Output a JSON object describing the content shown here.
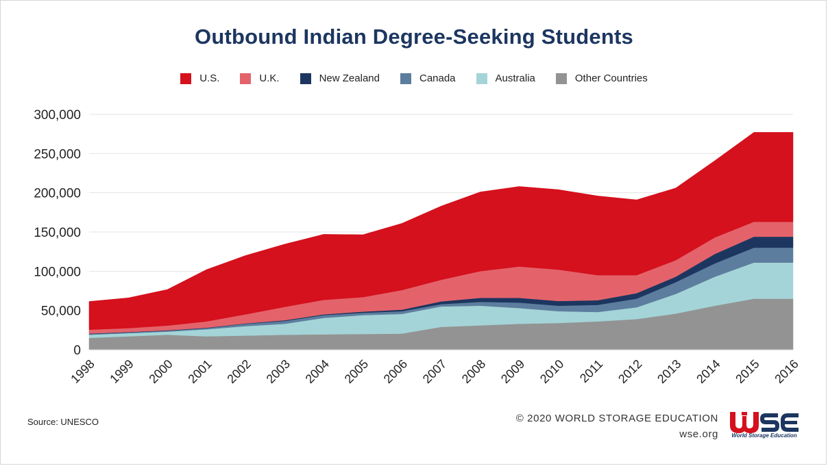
{
  "chart_data": {
    "type": "area",
    "stacked": true,
    "title": "Outbound Indian Degree-Seeking Students",
    "categories": [
      "1998",
      "1999",
      "2000",
      "2001",
      "2002",
      "2003",
      "2004",
      "2005",
      "2006",
      "2007",
      "2008",
      "2009",
      "2010",
      "2011",
      "2012",
      "2013",
      "2014",
      "2015",
      "2016"
    ],
    "ylim": [
      0,
      300000
    ],
    "yticks": [
      "0",
      "50,000",
      "100,000",
      "150,000",
      "200,000",
      "250,000",
      "300,000"
    ],
    "ytick_values": [
      0,
      50000,
      100000,
      150000,
      200000,
      250000,
      300000
    ],
    "grid": true,
    "legend_position": "top",
    "series": [
      {
        "name": "Other Countries",
        "color": "#939393",
        "values": [
          15000,
          17000,
          19000,
          17000,
          18000,
          19000,
          19500,
          20000,
          20500,
          29000,
          31000,
          33000,
          34000,
          36000,
          39000,
          46000,
          56000,
          65000,
          65000
        ]
      },
      {
        "name": "Australia",
        "color": "#a4d4d7",
        "values": [
          4000,
          4000,
          4000,
          9000,
          12000,
          14000,
          21000,
          24000,
          25000,
          26000,
          25000,
          20000,
          15000,
          12000,
          15000,
          25000,
          37000,
          46000,
          46000
        ]
      },
      {
        "name": "Canada",
        "color": "#5d7d9e",
        "values": [
          1000,
          1000,
          1200,
          1500,
          3000,
          3500,
          3500,
          3000,
          3500,
          3000,
          5000,
          7000,
          7000,
          9000,
          11000,
          15000,
          17000,
          19000,
          19000
        ]
      },
      {
        "name": "New Zealand",
        "color": "#1c3660",
        "values": [
          500,
          500,
          500,
          500,
          500,
          1000,
          1000,
          1500,
          2000,
          3500,
          5000,
          6000,
          6000,
          6000,
          7000,
          7000,
          12000,
          14000,
          14000
        ]
      },
      {
        "name": "U.K.",
        "color": "#e4636b",
        "values": [
          5000,
          5000,
          6000,
          8000,
          11500,
          17000,
          18500,
          18500,
          25000,
          27500,
          34000,
          40000,
          40000,
          32000,
          23000,
          21000,
          21000,
          19000,
          19000
        ]
      },
      {
        "name": "U.S.",
        "color": "#d4111d",
        "values": [
          36000,
          38500,
          46000,
          66000,
          75000,
          80000,
          83500,
          79500,
          85000,
          94000,
          101000,
          102000,
          102000,
          101000,
          96000,
          92000,
          98000,
          114000,
          114000
        ]
      }
    ],
    "legend_order": [
      "U.S.",
      "U.K.",
      "New Zealand",
      "Canada",
      "Australia",
      "Other Countries"
    ]
  },
  "footer": {
    "source": "Source: UNESCO",
    "copyright": "© 2020 WORLD STORAGE EDUCATION",
    "website": "wse.org"
  },
  "logo": {
    "text": "WSE",
    "tagline": "World Storage Education",
    "colors": {
      "red": "#d4111d",
      "navy": "#1c3660"
    }
  },
  "colors": {
    "title": "#1c3660",
    "grid": "#e3e3e3"
  }
}
